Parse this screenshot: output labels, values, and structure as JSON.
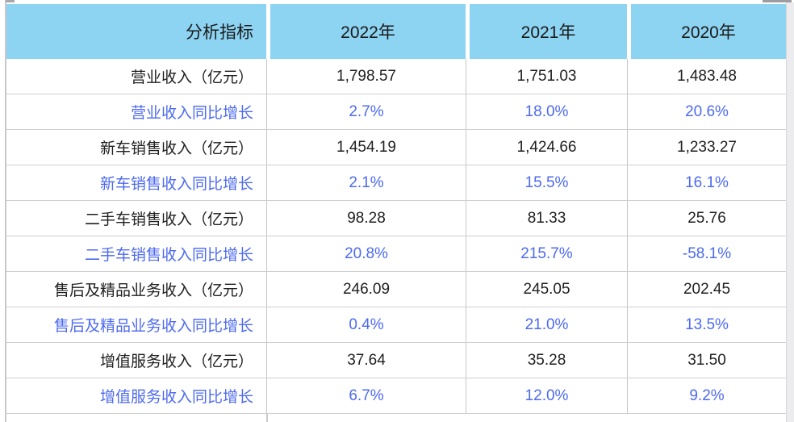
{
  "chart_data": {
    "type": "table",
    "header": {
      "indicator": "分析指标",
      "years": [
        "2022年",
        "2021年",
        "2020年"
      ]
    },
    "rows": [
      {
        "label": "营业收入（亿元）",
        "style": "value",
        "values": [
          "1,798.57",
          "1,751.03",
          "1,483.48"
        ]
      },
      {
        "label": "营业收入同比增长",
        "style": "growth",
        "values": [
          "2.7%",
          "18.0%",
          "20.6%"
        ]
      },
      {
        "label": "新车销售收入（亿元）",
        "style": "value",
        "values": [
          "1,454.19",
          "1,424.66",
          "1,233.27"
        ]
      },
      {
        "label": "新车销售收入同比增长",
        "style": "growth",
        "values": [
          "2.1%",
          "15.5%",
          "16.1%"
        ]
      },
      {
        "label": "二手车销售收入（亿元）",
        "style": "value",
        "values": [
          "98.28",
          "81.33",
          "25.76"
        ]
      },
      {
        "label": "二手车销售收入同比增长",
        "style": "growth",
        "values": [
          "20.8%",
          "215.7%",
          "-58.1%"
        ]
      },
      {
        "label": "售后及精品业务收入（亿元）",
        "style": "value",
        "values": [
          "246.09",
          "245.05",
          "202.45"
        ]
      },
      {
        "label": "售后及精品业务收入同比增长",
        "style": "growth",
        "values": [
          "0.4%",
          "21.0%",
          "13.5%"
        ]
      },
      {
        "label": "增值服务收入（亿元）",
        "style": "value",
        "values": [
          "37.64",
          "35.28",
          "31.50"
        ]
      },
      {
        "label": "增值服务收入同比增长",
        "style": "growth",
        "values": [
          "6.7%",
          "12.0%",
          "9.2%"
        ]
      }
    ]
  },
  "colors": {
    "header_bg": "#8dd3f2",
    "value_text": "#1f1f1f",
    "growth_text": "#4d6af0",
    "grid_line": "#cfcfcf"
  }
}
